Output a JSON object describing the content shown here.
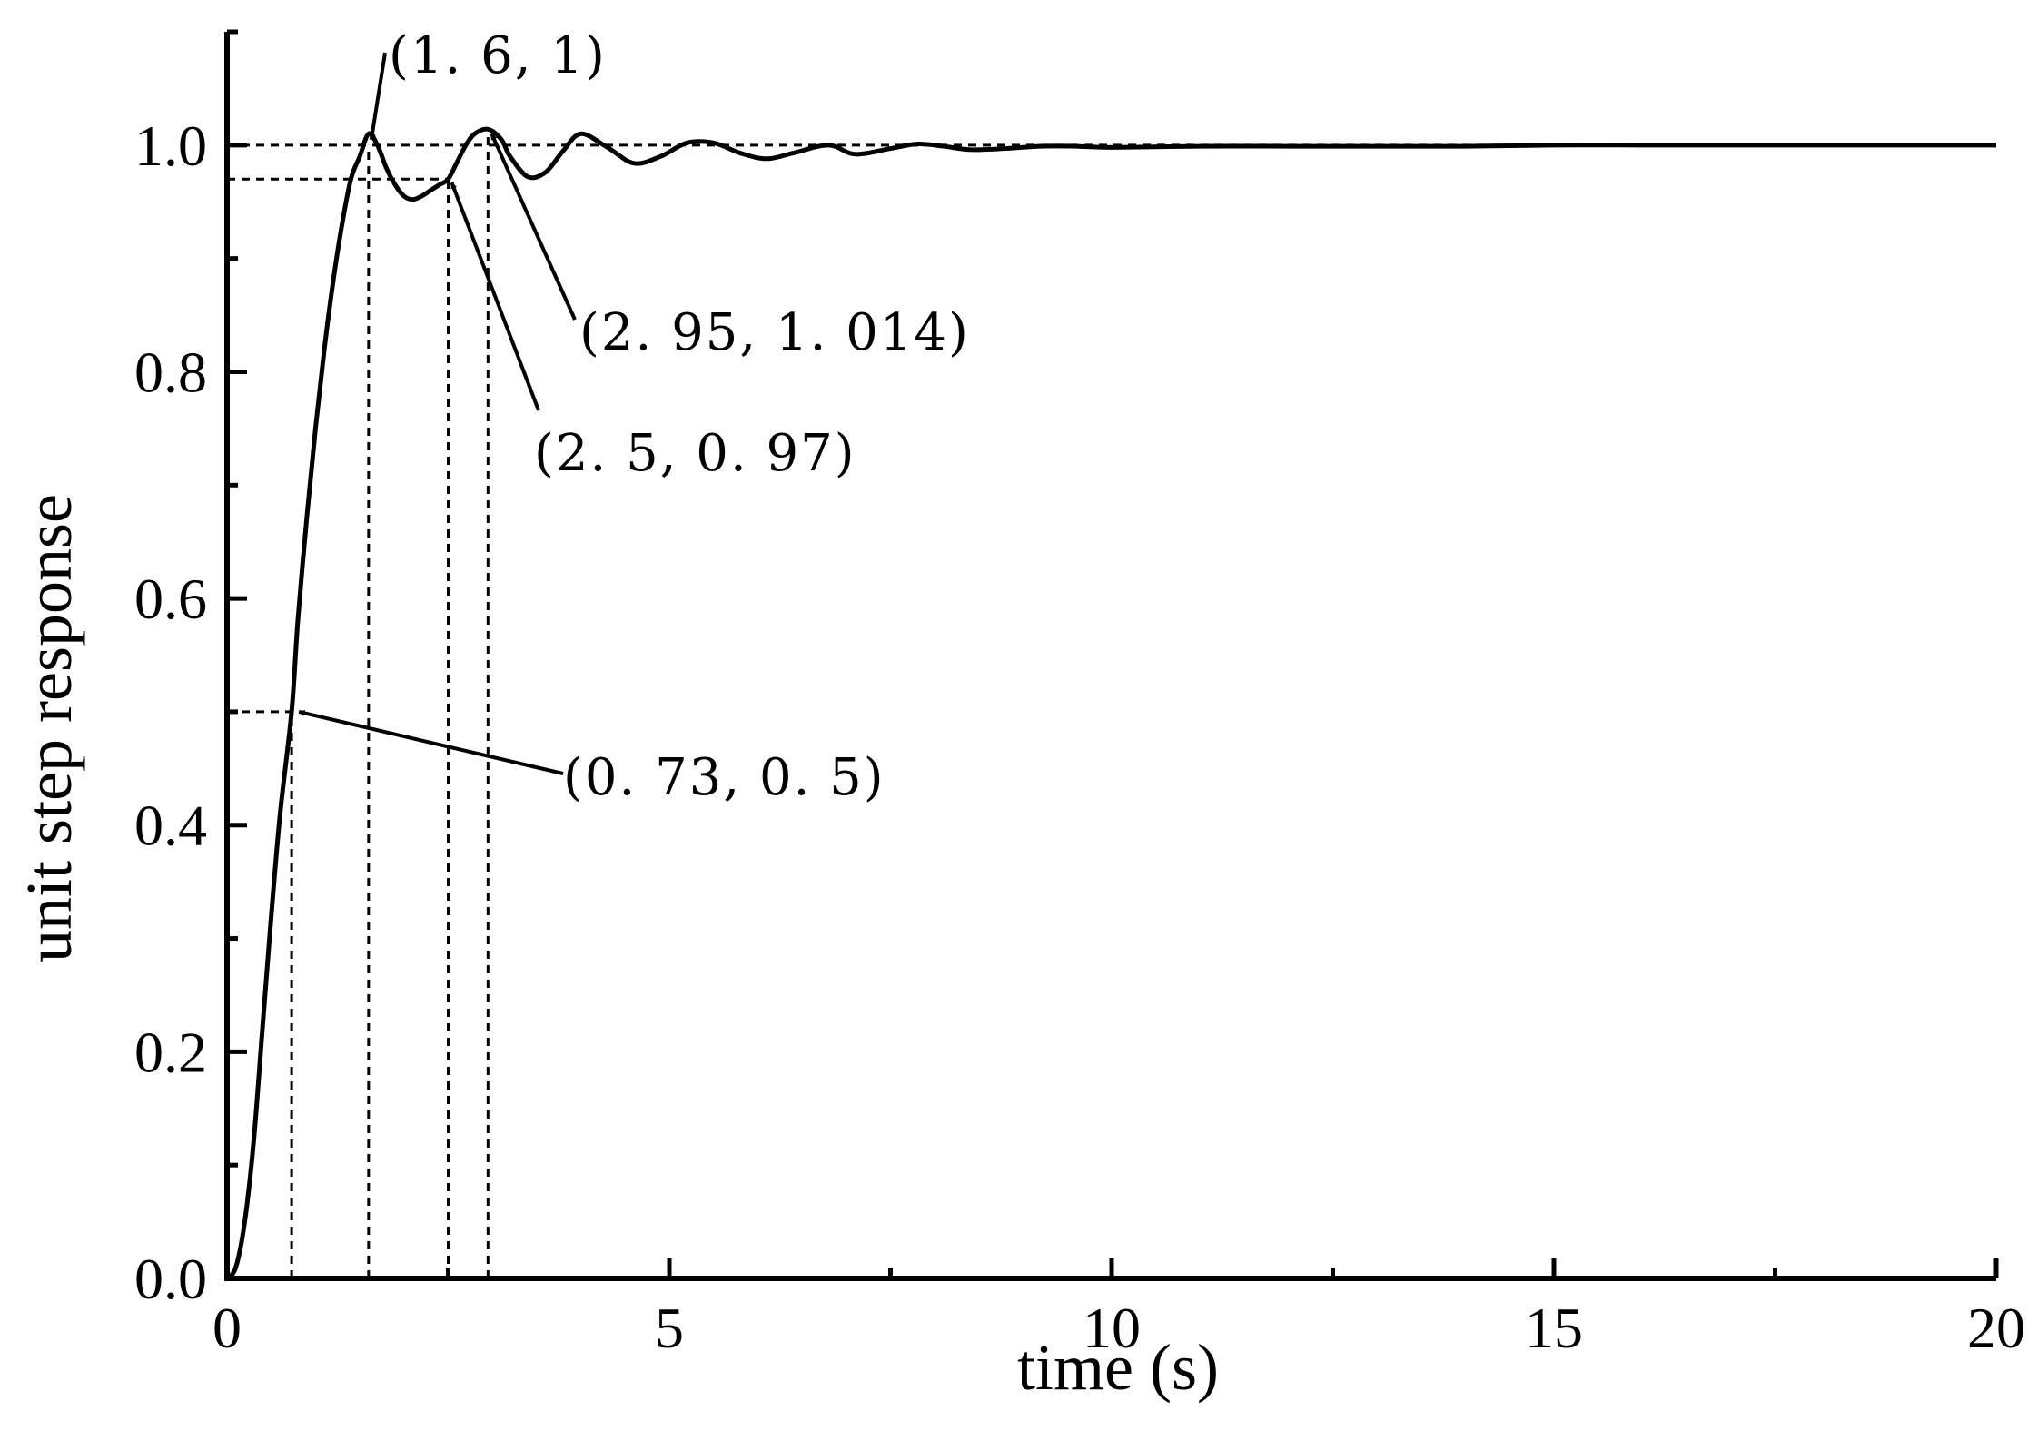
{
  "chart_data": {
    "type": "line",
    "title": "",
    "xlabel": "time (s)",
    "ylabel": "unit step response",
    "xlim": [
      0,
      20
    ],
    "ylim": [
      0,
      1.1
    ],
    "xticks": [
      0,
      5,
      10,
      15,
      20
    ],
    "xtick_labels": [
      "0",
      "5",
      "10",
      "15",
      "20"
    ],
    "yticks": [
      0.0,
      0.2,
      0.4,
      0.6,
      0.8,
      1.0
    ],
    "ytick_labels": [
      "0.0",
      "0.2",
      "0.4",
      "0.6",
      "0.8",
      "1.0"
    ],
    "grid": false,
    "legend": "none",
    "colors": {
      "line": "#000000",
      "background": "#ffffff"
    },
    "series": [
      {
        "x": [
          0,
          0.1,
          0.2,
          0.3,
          0.4,
          0.5,
          0.6,
          0.73,
          0.8,
          0.9,
          1.0,
          1.1,
          1.2,
          1.3,
          1.4,
          1.5,
          1.6,
          1.7,
          1.8,
          1.9,
          2.0,
          2.1,
          2.2,
          2.3,
          2.4,
          2.5,
          2.6,
          2.7,
          2.8,
          2.95,
          3.1,
          3.2,
          3.4,
          3.6,
          3.8,
          4.0,
          4.3,
          4.6,
          4.9,
          5.2,
          5.5,
          5.8,
          6.1,
          6.4,
          6.8,
          7.1,
          7.5,
          7.8,
          8.1,
          8.4,
          8.8,
          9.2,
          9.6,
          10,
          11,
          12,
          13,
          14,
          15,
          16,
          17,
          18,
          19,
          20
        ],
        "y": [
          0.0,
          0.01,
          0.05,
          0.12,
          0.22,
          0.32,
          0.41,
          0.5,
          0.58,
          0.67,
          0.75,
          0.82,
          0.88,
          0.93,
          0.97,
          0.99,
          1.01,
          1.0,
          0.98,
          0.965,
          0.955,
          0.952,
          0.955,
          0.96,
          0.965,
          0.97,
          0.985,
          1.0,
          1.01,
          1.014,
          1.005,
          0.99,
          0.972,
          0.976,
          0.995,
          1.01,
          0.998,
          0.984,
          0.99,
          1.002,
          1.002,
          0.993,
          0.988,
          0.993,
          1.0,
          0.992,
          0.997,
          1.001,
          0.999,
          0.996,
          0.997,
          0.999,
          0.999,
          0.998,
          0.999,
          0.999,
          0.999,
          0.999,
          1.0,
          1.0,
          1.0,
          1.0,
          1.0,
          1.0
        ]
      }
    ],
    "annotations": [
      {
        "label": "(1. 6, 1)",
        "x": 1.6,
        "y": 1.0
      },
      {
        "label": "(2. 5, 0. 97)",
        "x": 2.5,
        "y": 0.97
      },
      {
        "label": "(2. 95, 1. 014)",
        "x": 2.95,
        "y": 1.014
      },
      {
        "label": "(0. 73, 0. 5)",
        "x": 0.73,
        "y": 0.5
      }
    ]
  }
}
